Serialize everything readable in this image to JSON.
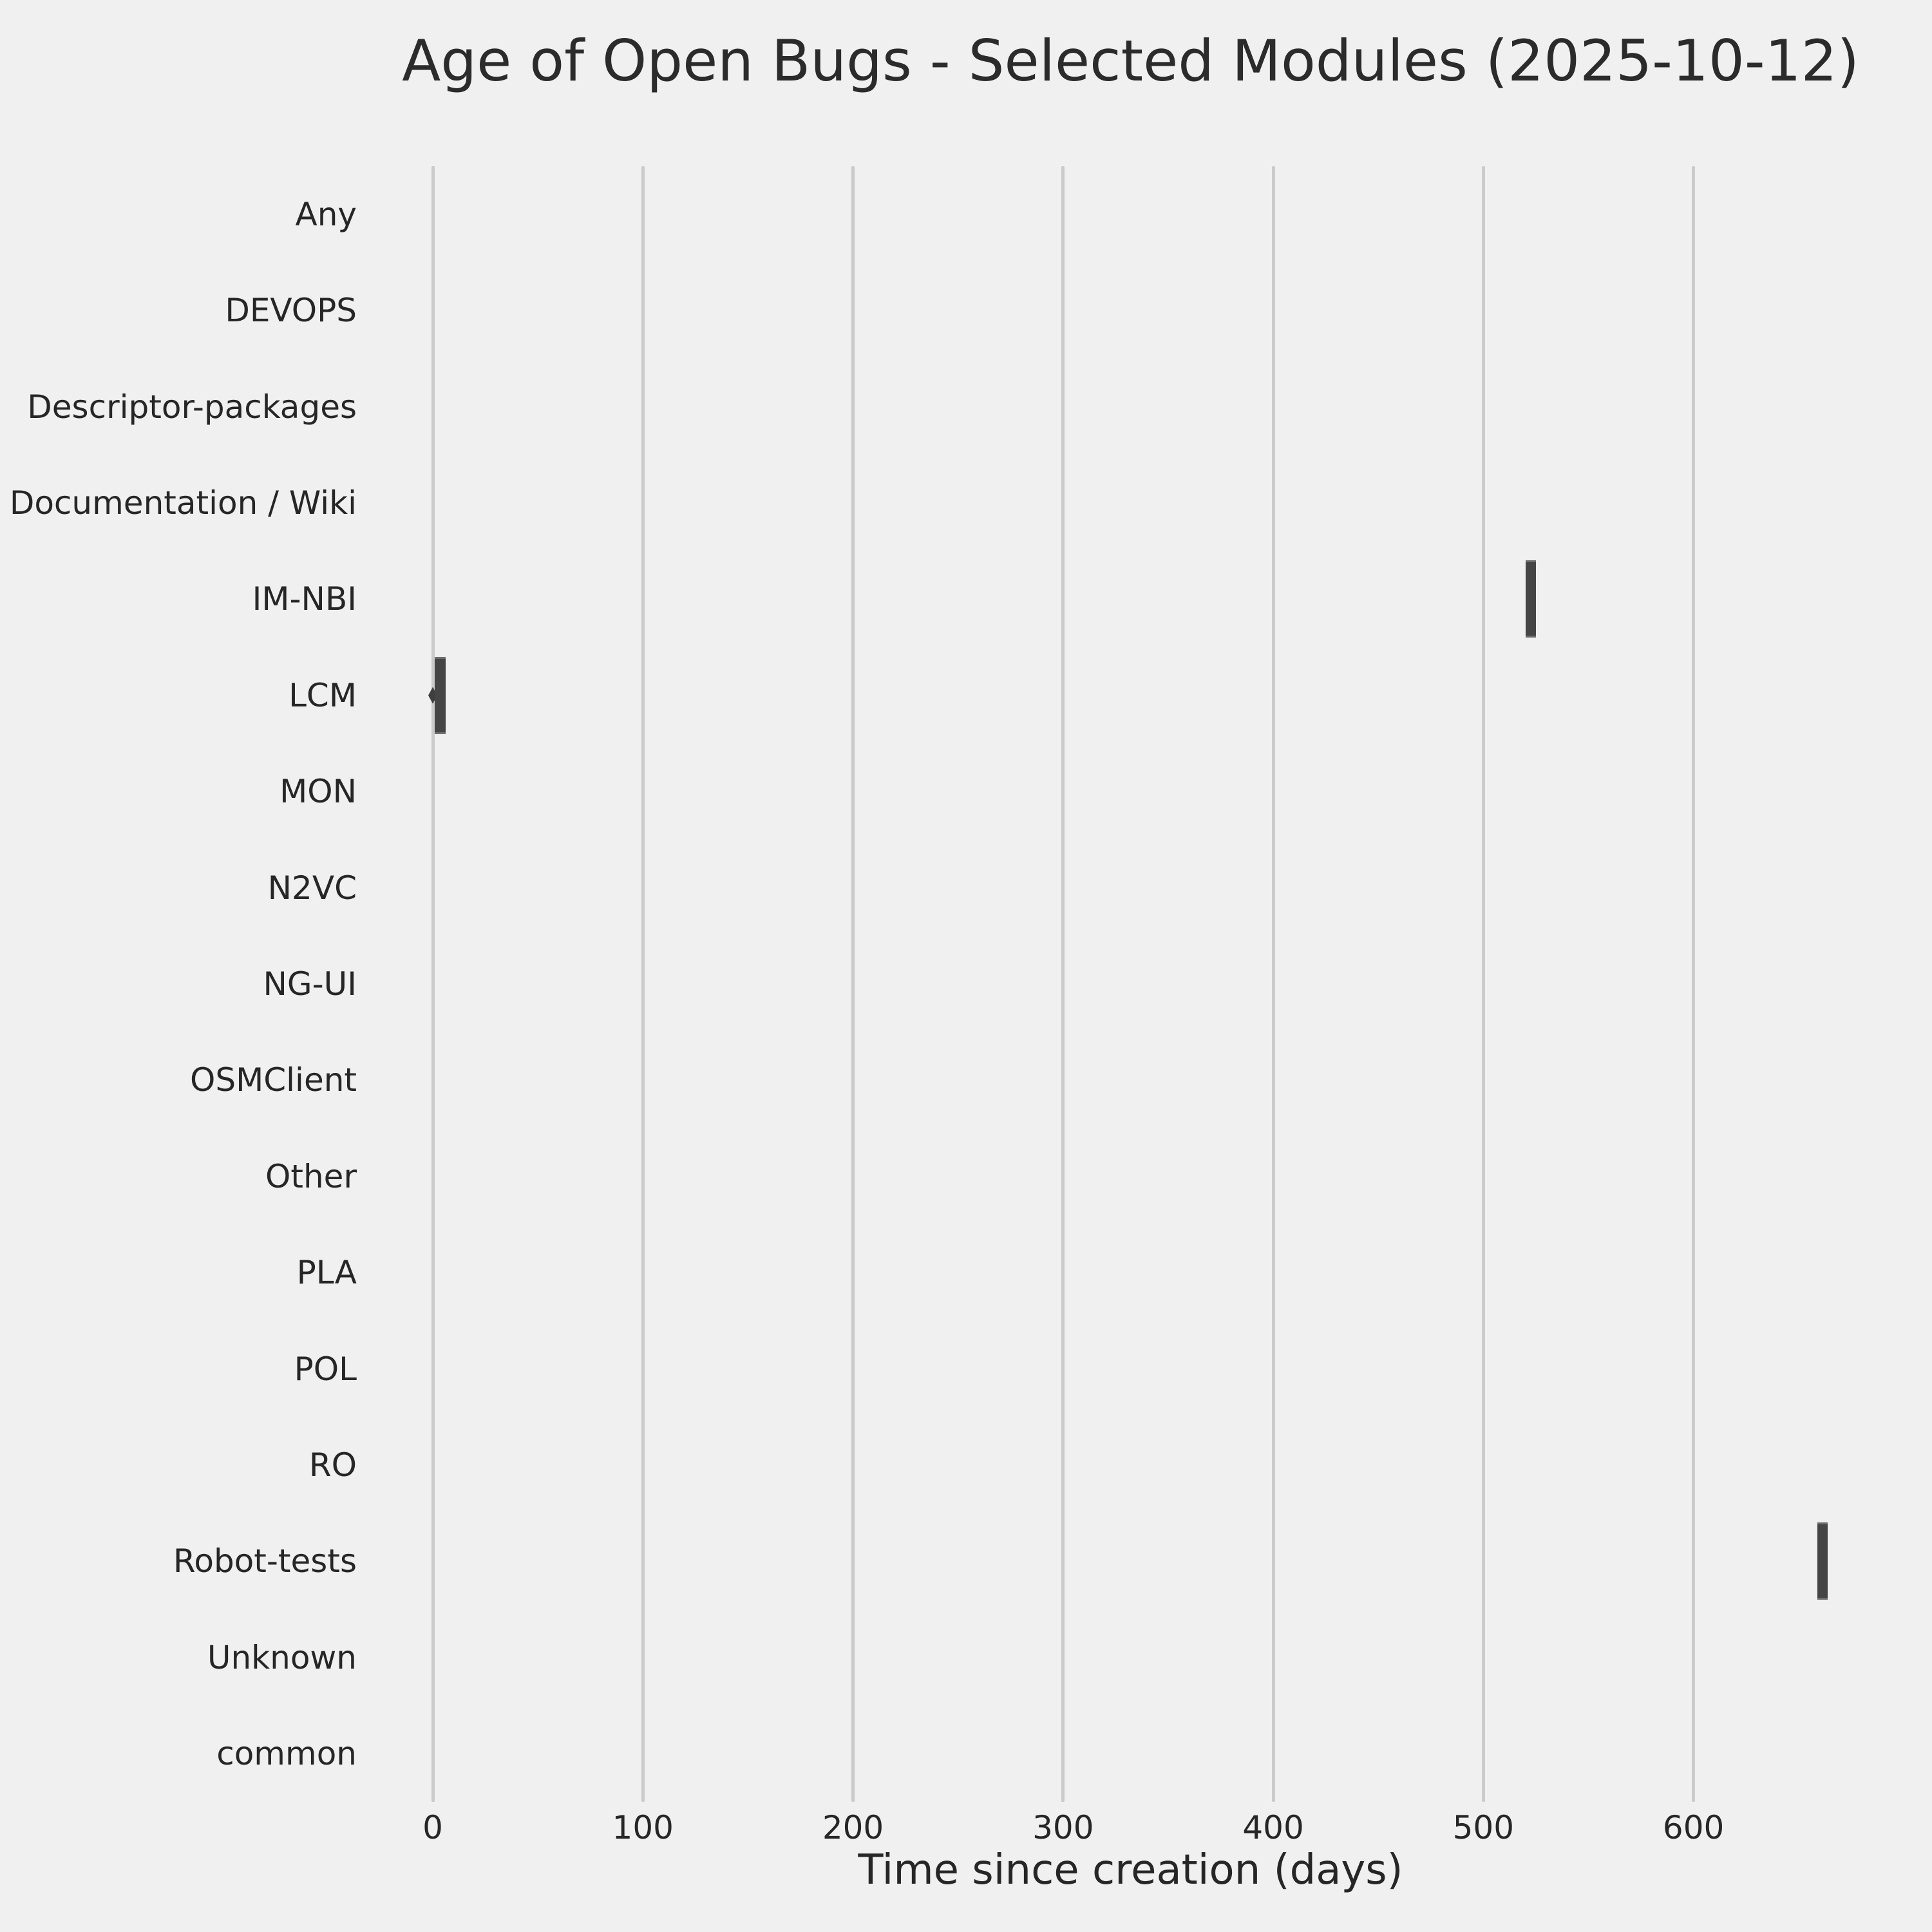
{
  "title": "Age of Open Bugs - Selected Modules (2025-10-12)",
  "xlabel": "Time since creation (days)",
  "colors": {
    "background": "#f0f0f0",
    "grid": "#cbcbcb",
    "box_fill": "#454545",
    "box_edge": "#6d6d6d",
    "flier": "#3f3f3f",
    "text": "#262626",
    "title_text": "#2b2b2b"
  },
  "chart_data": {
    "type": "boxplot",
    "orientation": "horizontal",
    "title": "Age of Open Bugs - Selected Modules (2025-10-12)",
    "xlabel": "Time since creation (days)",
    "ylabel": "",
    "grid": true,
    "legend": false,
    "x_ticks": [
      0,
      100,
      200,
      300,
      400,
      500,
      600
    ],
    "xlim": [
      -33,
      698
    ],
    "categories": [
      "Any",
      "DEVOPS",
      "Descriptor-packages",
      "Documentation / Wiki",
      "IM-NBI",
      "LCM",
      "MON",
      "N2VC",
      "NG-UI",
      "OSMClient",
      "Other",
      "PLA",
      "POL",
      "RO",
      "Robot-tests",
      "Unknown",
      "common"
    ],
    "boxes": [
      {
        "category": "IM-NBI",
        "whisker_low": 520,
        "q1": 520,
        "median": 522,
        "q3": 525,
        "whisker_high": 525,
        "fliers": []
      },
      {
        "category": "LCM",
        "whisker_low": 1,
        "q1": 1,
        "median": 4,
        "q3": 6,
        "whisker_high": 6,
        "fliers": [
          0
        ]
      },
      {
        "category": "Robot-tests",
        "whisker_low": 659,
        "q1": 659,
        "median": 662,
        "q3": 664,
        "whisker_high": 664,
        "fliers": []
      }
    ]
  }
}
